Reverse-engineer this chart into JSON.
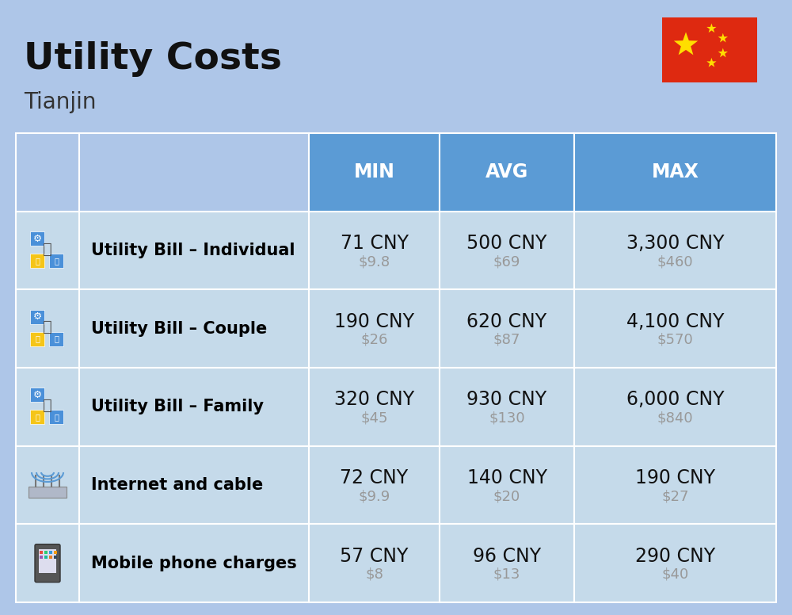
{
  "title": "Utility Costs",
  "subtitle": "Tianjin",
  "background_color": "#aec6e8",
  "header_bg_color": "#5b9bd5",
  "header_text_color": "#ffffff",
  "row_bg_color": "#c5daea",
  "border_color": "#ffffff",
  "col_headers": [
    "MIN",
    "AVG",
    "MAX"
  ],
  "rows": [
    {
      "label": "Utility Bill – Individual",
      "min_cny": "71 CNY",
      "min_usd": "$9.8",
      "avg_cny": "500 CNY",
      "avg_usd": "$69",
      "max_cny": "3,300 CNY",
      "max_usd": "$460"
    },
    {
      "label": "Utility Bill – Couple",
      "min_cny": "190 CNY",
      "min_usd": "$26",
      "avg_cny": "620 CNY",
      "avg_usd": "$87",
      "max_cny": "4,100 CNY",
      "max_usd": "$570"
    },
    {
      "label": "Utility Bill – Family",
      "min_cny": "320 CNY",
      "min_usd": "$45",
      "avg_cny": "930 CNY",
      "avg_usd": "$130",
      "max_cny": "6,000 CNY",
      "max_usd": "$840"
    },
    {
      "label": "Internet and cable",
      "min_cny": "72 CNY",
      "min_usd": "$9.9",
      "avg_cny": "140 CNY",
      "avg_usd": "$20",
      "max_cny": "190 CNY",
      "max_usd": "$27"
    },
    {
      "label": "Mobile phone charges",
      "min_cny": "57 CNY",
      "min_usd": "$8",
      "avg_cny": "96 CNY",
      "avg_usd": "$13",
      "max_cny": "290 CNY",
      "max_usd": "$40"
    }
  ],
  "title_fontsize": 34,
  "subtitle_fontsize": 20,
  "header_fontsize": 17,
  "label_fontsize": 15,
  "value_fontsize": 17,
  "usd_fontsize": 13,
  "usd_color": "#999999",
  "label_color": "#000000",
  "value_color": "#111111"
}
